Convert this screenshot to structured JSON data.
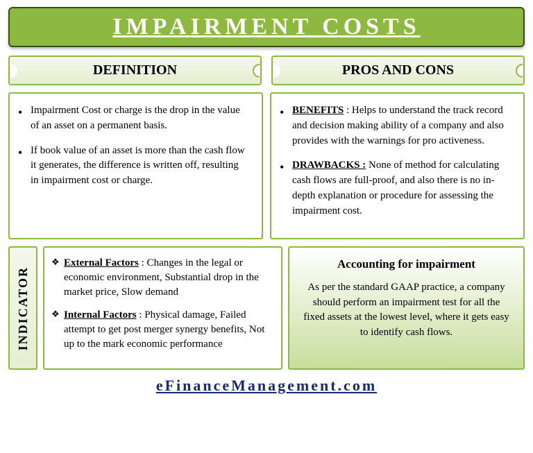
{
  "title": "IMPAIRMENT COSTS",
  "sections": {
    "definition_label": "DEFINITION",
    "proscons_label": "PROS AND CONS"
  },
  "definition": {
    "items": [
      "Impairment Cost or charge is the drop in the value of an asset on a permanent basis.",
      "If book value of an asset is more than the cash flow it generates, the difference is written off, resulting in impairment cost or charge."
    ]
  },
  "proscons": {
    "benefits_label": "BENEFITS",
    "benefits_text": " : Helps to understand the track record and decision making ability of a company and also provides with the warnings for pro activeness.",
    "drawbacks_label": "DRAWBACKS :",
    "drawbacks_text": " None of method for calculating cash flows are full-proof, and also there is no in-depth explanation or procedure for assessing the impairment cost."
  },
  "indicator": {
    "label": "INDICATOR",
    "external_label": "External Factors",
    "external_text": " : Changes in the legal or economic environment, Substantial drop in the market price, Slow demand",
    "internal_label": "Internal Factors",
    "internal_text": " : Physical damage, Failed attempt to get post merger synergy benefits, Not up to the mark economic performance"
  },
  "accounting": {
    "heading": "Accounting for impairment",
    "text": "As per the standard GAAP practice, a company should perform an impairment test for all the fixed assets at the lowest level, where it gets easy to identify cash flows."
  },
  "footer": "eFinanceManagement.com",
  "colors": {
    "primary": "#8eb940",
    "border_dark": "#384d1a",
    "link": "#1a2a6c"
  }
}
